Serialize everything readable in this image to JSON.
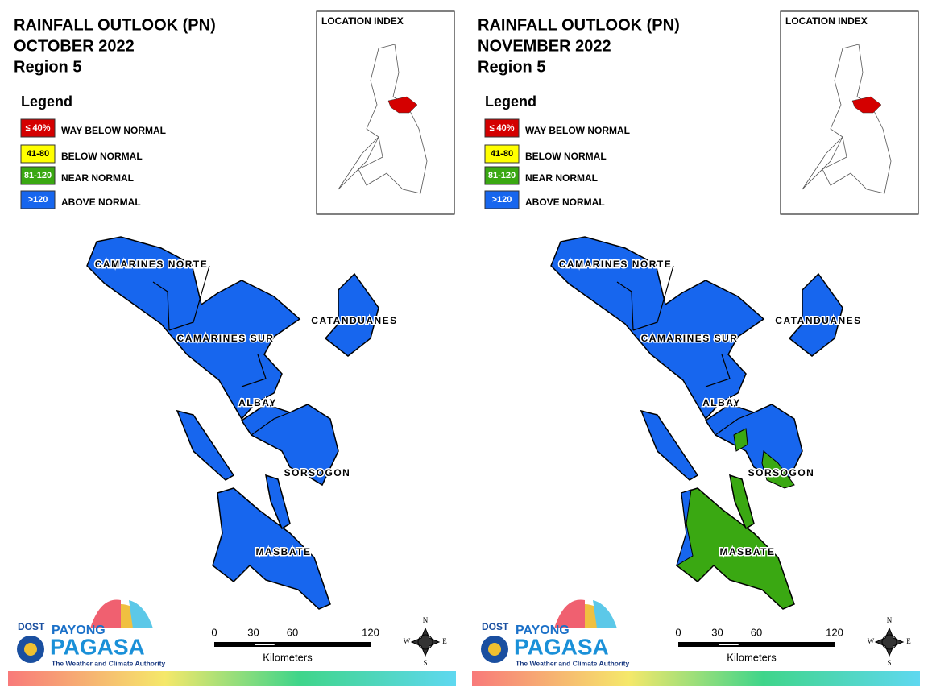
{
  "panels": [
    {
      "title": [
        "RAINFALL OUTLOOK (PN)",
        "OCTOBER 2022",
        "Region 5"
      ],
      "location_index": "LOCATION INDEX",
      "legend": {
        "title": "Legend",
        "items": [
          {
            "key": "≤ 40%",
            "label": "WAY BELOW NORMAL",
            "color": "#d40000"
          },
          {
            "key": "41-80",
            "label": "BELOW NORMAL",
            "color": "#ffff00"
          },
          {
            "key": "81-120",
            "label": "NEAR NORMAL",
            "color": "#3aa812"
          },
          {
            "key": ">120",
            "label": "ABOVE NORMAL",
            "color": "#1766ee"
          }
        ]
      },
      "provinces": [
        "CAMARINES NORTE",
        "CAMARINES SUR",
        "CATANDUANES",
        "ALBAY",
        "SORSOGON",
        "MASBATE"
      ],
      "scale": {
        "ticks": [
          0,
          30,
          60,
          120
        ],
        "unit": "Kilometers"
      },
      "compass": [
        "N",
        "E",
        "S",
        "W"
      ],
      "logo": {
        "dost": "DOST",
        "payong": "PAYONG",
        "pagasa": "PAGASA",
        "tagline": "The Weather and Climate Authority"
      }
    },
    {
      "title": [
        "RAINFALL OUTLOOK (PN)",
        "NOVEMBER 2022",
        "Region 5"
      ],
      "location_index": "LOCATION INDEX",
      "legend": {
        "title": "Legend",
        "items": [
          {
            "key": "≤ 40%",
            "label": "WAY BELOW NORMAL",
            "color": "#d40000"
          },
          {
            "key": "41-80",
            "label": "BELOW NORMAL",
            "color": "#ffff00"
          },
          {
            "key": "81-120",
            "label": "NEAR NORMAL",
            "color": "#3aa812"
          },
          {
            "key": ">120",
            "label": "ABOVE NORMAL",
            "color": "#1766ee"
          }
        ]
      },
      "provinces": [
        "CAMARINES NORTE",
        "CAMARINES SUR",
        "CATANDUANES",
        "ALBAY",
        "SORSOGON",
        "MASBATE"
      ],
      "scale": {
        "ticks": [
          0,
          30,
          60,
          120
        ],
        "unit": "Kilometers"
      },
      "compass": [
        "N",
        "E",
        "S",
        "W"
      ],
      "logo": {
        "dost": "DOST",
        "payong": "PAYONG",
        "pagasa": "PAGASA",
        "tagline": "The Weather and Climate Authority"
      }
    }
  ]
}
